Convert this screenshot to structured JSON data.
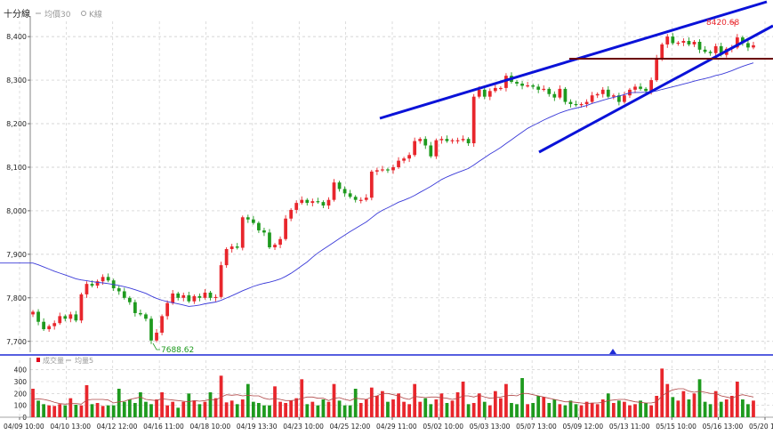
{
  "header": {
    "title": "十分線",
    "legend": [
      {
        "label": "均價30",
        "color": "#9a9a9a"
      },
      {
        "label": "K線",
        "color": "#9a9a9a"
      }
    ]
  },
  "volume_header": {
    "legend": [
      {
        "label": "成交量",
        "color": "#e0001b"
      },
      {
        "label": "均量5",
        "color": "#9a9a9a"
      }
    ]
  },
  "colors": {
    "up": "#e8262c",
    "down": "#1e9a1e",
    "ma_price": "#3a3ad8",
    "ma_volume": "#b04848",
    "trend_lines": "#0a12d8",
    "horizontal_line": "#6b0000",
    "grid": "#c8c8c8",
    "separator": "#1e2ad6",
    "label_low": "#1e9a1e",
    "label_high": "#e8262c"
  },
  "annotations": {
    "low_label": "7688.62",
    "high_label": "8420.68"
  },
  "chart_data": {
    "type": "candlestick",
    "price_axis": {
      "ticks": [
        "7,700",
        "7,800",
        "7,900",
        "8,000",
        "8,100",
        "8,200",
        "8,300",
        "8,400"
      ],
      "ylim": [
        7675,
        8435
      ]
    },
    "volume_axis": {
      "ticks": [
        "0",
        "100",
        "200",
        "300",
        "400"
      ],
      "ylim": [
        0,
        420
      ]
    },
    "x_ticks": [
      "04/09 10:00",
      "04/10 13:00",
      "04/12 12:00",
      "04/16 11:00",
      "04/18 10:00",
      "04/19 13:30",
      "04/23 10:00",
      "04/25 12:00",
      "04/29 11:00",
      "05/02 10:00",
      "05/03 13:00",
      "05/07 13:00",
      "05/09 12:00",
      "05/13 11:00",
      "05/15 10:00",
      "05/16 13:00",
      "05/20 13:00"
    ],
    "closes": [
      7768,
      7745,
      7728,
      7735,
      7742,
      7758,
      7752,
      7762,
      7748,
      7808,
      7832,
      7828,
      7838,
      7848,
      7840,
      7822,
      7815,
      7800,
      7790,
      7765,
      7762,
      7752,
      7702,
      7720,
      7758,
      7788,
      7810,
      7800,
      7806,
      7792,
      7804,
      7800,
      7812,
      7800,
      7802,
      7875,
      7912,
      7918,
      7915,
      7985,
      7980,
      7972,
      7955,
      7950,
      7916,
      7922,
      7935,
      7982,
      8002,
      8018,
      8025,
      8018,
      8022,
      8020,
      8012,
      8025,
      8065,
      8050,
      8040,
      8032,
      8025,
      8025,
      8030,
      8090,
      8093,
      8095,
      8093,
      8100,
      8115,
      8120,
      8128,
      8160,
      8165,
      8150,
      8125,
      8162,
      8165,
      8160,
      8162,
      8162,
      8165,
      8155,
      8262,
      8278,
      8262,
      8275,
      8282,
      8282,
      8310,
      8296,
      8292,
      8287,
      8288,
      8285,
      8278,
      8280,
      8268,
      8260,
      8280,
      8250,
      8245,
      8243,
      8245,
      8250,
      8265,
      8268,
      8278,
      8262,
      8265,
      8250,
      8265,
      8278,
      8285,
      8280,
      8275,
      8300,
      8350,
      8382,
      8400,
      8385,
      8386,
      8390,
      8382,
      8388,
      8370,
      8365,
      8362,
      8378,
      8358,
      8372,
      8375,
      8398,
      8385,
      8375,
      8380
    ],
    "volumes": [
      240,
      140,
      110,
      100,
      95,
      110,
      100,
      160,
      105,
      100,
      270,
      110,
      120,
      95,
      100,
      100,
      240,
      130,
      150,
      120,
      210,
      130,
      110,
      150,
      210,
      100,
      130,
      80,
      130,
      200,
      140,
      110,
      130,
      210,
      160,
      350,
      125,
      140,
      110,
      150,
      280,
      130,
      120,
      100,
      100,
      260,
      130,
      120,
      140,
      160,
      320,
      110,
      130,
      100,
      150,
      130,
      280,
      140,
      100,
      100,
      240,
      120,
      150,
      250,
      180,
      220,
      130,
      150,
      200,
      130,
      110,
      280,
      130,
      160,
      110,
      150,
      200,
      120,
      140,
      210,
      300,
      110,
      120,
      200,
      130,
      100,
      220,
      160,
      280,
      120,
      110,
      330,
      110,
      120,
      180,
      170,
      120,
      150,
      110,
      100,
      140,
      110,
      100,
      130,
      120,
      110,
      150,
      200,
      120,
      140,
      130,
      100,
      110,
      140,
      120,
      100,
      180,
      410,
      280,
      170,
      140,
      220,
      150,
      200,
      320,
      130,
      110,
      220,
      130,
      150,
      180,
      300,
      150,
      110,
      140
    ],
    "vol_ma": [
      150,
      155,
      150,
      140,
      125,
      115,
      110,
      115,
      115,
      110,
      145,
      150,
      150,
      150,
      145,
      120,
      130,
      135,
      150,
      160,
      170,
      150,
      145,
      140,
      155,
      150,
      145,
      140,
      135,
      130,
      140,
      135,
      140,
      150,
      145,
      170,
      190,
      185,
      190,
      180,
      185,
      180,
      180,
      160,
      150,
      160,
      150,
      140,
      140,
      145,
      160,
      170,
      170,
      160,
      160,
      140,
      160,
      165,
      150,
      140,
      160,
      155,
      150,
      170,
      180,
      200,
      200,
      190,
      180,
      160,
      150,
      175,
      170,
      165,
      170,
      170,
      165,
      160,
      150,
      160,
      180,
      180,
      170,
      185,
      170,
      160,
      165,
      170,
      180,
      185,
      180,
      200,
      200,
      190,
      180,
      170,
      160,
      150,
      140,
      130,
      130,
      125,
      120,
      115,
      120,
      120,
      125,
      140,
      145,
      150,
      150,
      140,
      130,
      125,
      120,
      120,
      130,
      180,
      210,
      230,
      240,
      240,
      220,
      210,
      220,
      210,
      200,
      200,
      180,
      170,
      160,
      180,
      190,
      180,
      170
    ],
    "high_point": {
      "index": 132,
      "value": 8420.68
    },
    "low_point": {
      "index": 22,
      "value": 7688.62
    }
  }
}
